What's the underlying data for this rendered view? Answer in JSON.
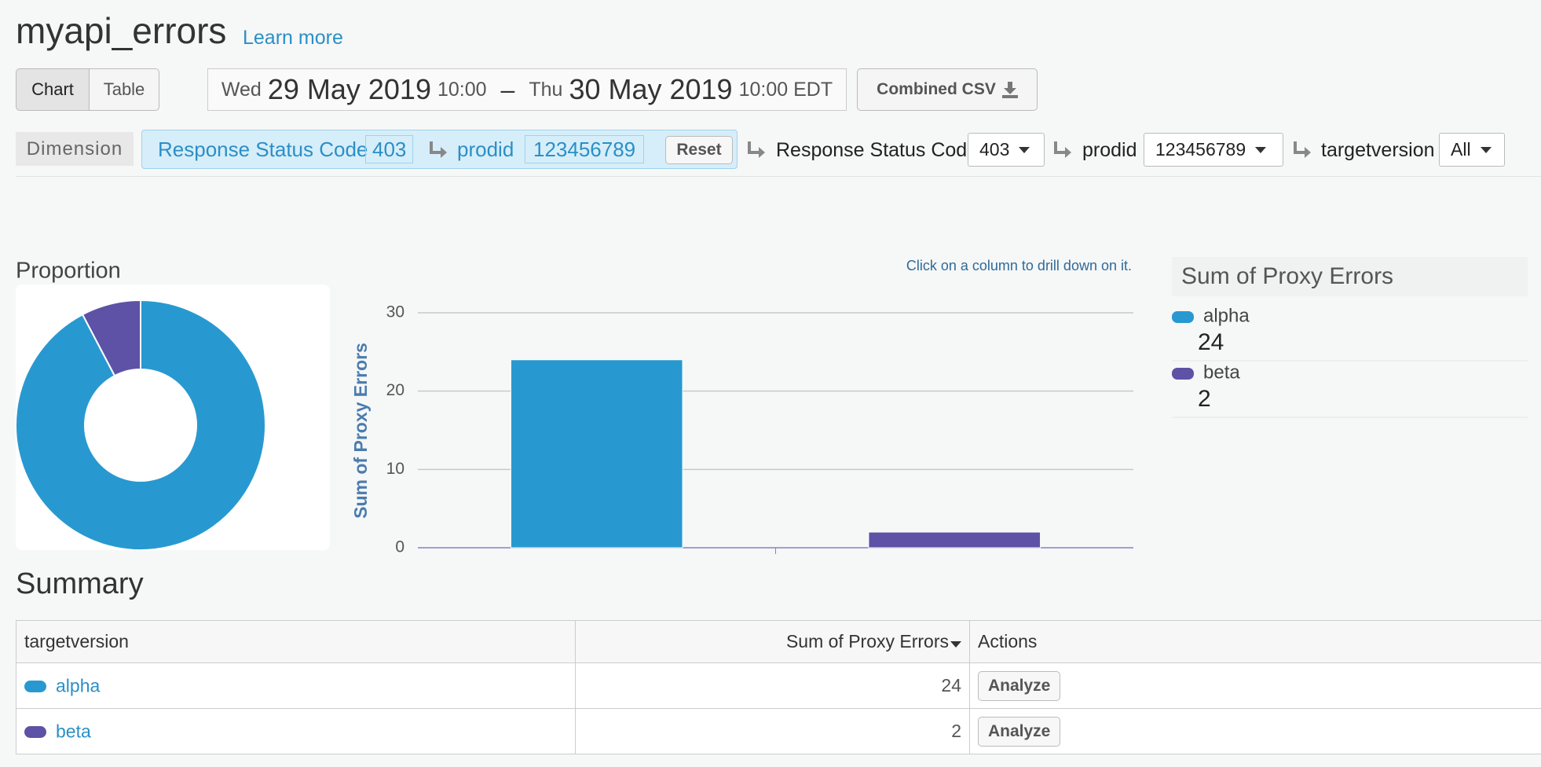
{
  "header": {
    "title": "myapi_errors",
    "learn_more": "Learn more"
  },
  "toolbar": {
    "tabs": [
      "Chart",
      "Table"
    ],
    "date_range": {
      "from_day": "Wed",
      "from_date": "29 May 2019",
      "from_time": "10:00",
      "dash": "–",
      "to_day": "Thu",
      "to_date": "30 May 2019",
      "to_time": "10:00 EDT"
    },
    "csv": "Combined CSV"
  },
  "dimensions": {
    "label": "Dimension",
    "path": [
      {
        "name": "Response Status Code",
        "value": "403"
      },
      {
        "name": "prodid",
        "value": "123456789"
      }
    ],
    "reset": "Reset",
    "selectors": [
      {
        "name": "Response Status Code",
        "value": "403"
      },
      {
        "name": "prodid",
        "value": "123456789"
      },
      {
        "name": "targetversion",
        "value": "All"
      }
    ]
  },
  "chart_data": [
    {
      "type": "pie",
      "title": "Proportion",
      "categories": [
        "alpha",
        "beta"
      ],
      "values": [
        24,
        2
      ],
      "colors": [
        "#2899d0",
        "#5d52a5"
      ],
      "hole": true
    },
    {
      "type": "bar",
      "annotation": "Click on a column to drill down on it.",
      "y_label": "Sum of Proxy Errors",
      "categories": [
        null,
        null
      ],
      "values": [
        24,
        2
      ],
      "colors": [
        "#2899d0",
        "#5d52a5"
      ],
      "ylim": [
        0,
        30
      ],
      "yticks": [
        0,
        10,
        20,
        30
      ],
      "grid": true
    }
  ],
  "legend": {
    "title": "Sum of Proxy Errors"
  },
  "summary": {
    "title": "Summary",
    "columns": [
      "targetversion",
      "Sum of Proxy Errors",
      "Actions"
    ],
    "rows": [
      {
        "name": "alpha",
        "value": 24,
        "action": "Analyze"
      },
      {
        "name": "beta",
        "value": 2,
        "action": "Analyze"
      }
    ]
  }
}
